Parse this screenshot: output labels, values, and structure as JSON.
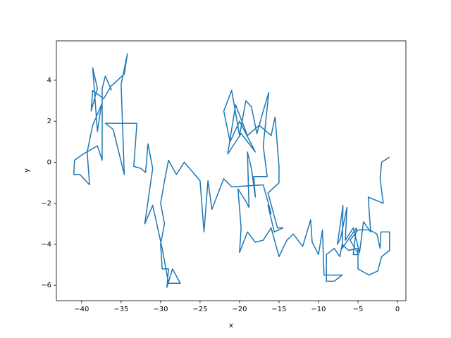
{
  "chart_data": {
    "type": "line",
    "xlabel": "x",
    "ylabel": "y",
    "color": "#1f77b4",
    "xlim": [
      -43.2,
      1.07
    ],
    "ylim": [
      -6.75,
      5.92
    ],
    "xticks": [
      {
        "value": -40,
        "label": "−40"
      },
      {
        "value": -35,
        "label": "−35"
      },
      {
        "value": -30,
        "label": "−30"
      },
      {
        "value": -25,
        "label": "−25"
      },
      {
        "value": -20,
        "label": "−20"
      },
      {
        "value": -15,
        "label": "−15"
      },
      {
        "value": -10,
        "label": "−10"
      },
      {
        "value": -5,
        "label": "−5"
      },
      0
    ],
    "yticks": [
      {
        "value": -6,
        "label": "−6"
      },
      {
        "value": -4,
        "label": "−4"
      },
      {
        "value": -2,
        "label": "−2"
      },
      0,
      2,
      4
    ],
    "x": [
      -1.0,
      -2.0,
      -2.2,
      -1.8,
      -3.7,
      -3.4,
      -4.3,
      -4.8,
      -5.6,
      -6.6,
      -6.4,
      -7.2,
      -7.6,
      -6.9,
      -7.0,
      -5.2,
      -5.6,
      -4.9,
      -6.0,
      -5.0,
      -3.5,
      -2.6,
      -2.2,
      -2.1,
      -1.0,
      -1.0,
      -2.0,
      -2.5,
      -3.6,
      -5.0,
      -5.0,
      -6.2,
      -7.0,
      -7.3,
      -8.0,
      -9.0,
      -9.0,
      -8.0,
      -7.0,
      -9.3,
      -9.5,
      -10.0,
      -10.8,
      -11.0,
      -12.0,
      -13.2,
      -14.0,
      -15.0,
      -16.0,
      -17.0,
      -18.0,
      -19.0,
      -20.0,
      -19.8,
      -20.2,
      -19.2,
      -18.8,
      -19.0,
      -18.5,
      -18.0,
      -18.2,
      -16.5,
      -17.0,
      -16.3,
      -17.0,
      -17.8,
      -18.5,
      -19.2,
      -20.0,
      -21.0,
      -22.0,
      -21.2,
      -20.0,
      -18.0,
      -19.8,
      -21.5,
      -20.5,
      -19.0,
      -17.5,
      -16.0,
      -15.5,
      -15.0,
      -15.0,
      -16.4,
      -15.2,
      -14.5,
      -15.6,
      -16.4,
      -16.0,
      -17.0,
      -21.0,
      -22.0,
      -23.5,
      -24.0,
      -24.5,
      -25.0,
      -27.0,
      -28.0,
      -29.0,
      -29.5,
      -30.0,
      -29.5,
      -30.0,
      -29.8,
      -29.0,
      -29.2,
      -28.5,
      -27.5,
      -29.0,
      -29.8,
      -31.0,
      -32.0,
      -31.0,
      -31.6,
      -31.9,
      -32.5,
      -33.4,
      -33.0,
      -35.0,
      -37.0,
      -36.0,
      -34.6,
      -35.0,
      -34.2,
      -34.6,
      -36.3,
      -37.2,
      -38.6,
      -38.8,
      -38.0,
      -38.6,
      -38.0,
      -37.5,
      -38.6,
      -39.3,
      -39.0,
      -40.2,
      -41.0,
      -40.9,
      -39.8,
      -38.0,
      -37.4,
      -37.4,
      -37.0,
      -36.2
    ],
    "values": [
      0.25,
      0.0,
      -0.8,
      -2.0,
      -1.7,
      -3.4,
      -2.9,
      -4.4,
      -3.2,
      -3.8,
      -2.2,
      -3.7,
      -4.0,
      -2.1,
      -4.2,
      -3.2,
      -4.5,
      -4.5,
      -3.8,
      -3.3,
      -3.3,
      -3.5,
      -4.2,
      -3.4,
      -3.4,
      -4.3,
      -4.6,
      -5.3,
      -5.5,
      -5.2,
      -4.2,
      -4.3,
      -4.0,
      -4.6,
      -4.2,
      -4.5,
      -5.8,
      -5.8,
      -5.5,
      -5.5,
      -3.3,
      -4.5,
      -3.9,
      -2.8,
      -4.1,
      -3.5,
      -3.8,
      -4.6,
      -3.2,
      -3.8,
      -3.9,
      -3.4,
      -4.4,
      -3.2,
      -1.3,
      -1.9,
      -2.2,
      0.5,
      -0.3,
      -1.7,
      -0.7,
      -0.7,
      0.8,
      3.4,
      2.5,
      1.4,
      2.7,
      3.0,
      1.3,
      3.5,
      2.5,
      1.0,
      2.0,
      0.5,
      1.4,
      0.4,
      2.8,
      1.3,
      1.8,
      1.3,
      2.2,
      -0.2,
      -1.0,
      -1.5,
      -3.2,
      -3.2,
      -3.4,
      -2.1,
      -2.5,
      -1.1,
      -1.2,
      -0.8,
      -2.3,
      -0.9,
      -3.4,
      -0.9,
      0.0,
      -0.6,
      0.1,
      -0.9,
      -2.0,
      -3.0,
      -4.0,
      -5.2,
      -5.2,
      -6.1,
      -5.2,
      -5.9,
      -5.9,
      -4.2,
      -2.1,
      -3.0,
      -0.3,
      0.9,
      -0.5,
      -0.3,
      -0.2,
      1.9,
      1.9,
      1.9,
      1.6,
      -0.6,
      3.8,
      5.3,
      4.3,
      3.7,
      3.1,
      3.5,
      2.5,
      3.6,
      4.6,
      1.5,
      2.8,
      1.8,
      0.5,
      -1.1,
      -0.6,
      -0.6,
      0.1,
      0.4,
      0.8,
      0.1,
      3.6,
      4.2,
      3.5
    ]
  }
}
